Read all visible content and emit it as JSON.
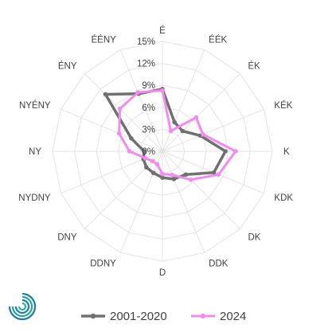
{
  "chart_data": {
    "type": "radar",
    "categories": [
      "É",
      "ÉÉK",
      "ÉK",
      "KÉK",
      "K",
      "KDK",
      "DK",
      "DDK",
      "D",
      "DDNY",
      "DNY",
      "NYDNY",
      "NY",
      "NYÉNY",
      "ÉNY",
      "ÉÉNY"
    ],
    "tick_labels": [
      "0%",
      "3%",
      "6%",
      "9%",
      "12%",
      "15%"
    ],
    "rlim": [
      0,
      15
    ],
    "grid": true,
    "legend_position": "bottom",
    "series": [
      {
        "name": "2001-2020",
        "color": "#707070",
        "values": [
          8.5,
          4.3,
          3.9,
          5.6,
          8.6,
          7.6,
          4.5,
          4.1,
          3.6,
          3.2,
          3.1,
          2.8,
          2.5,
          4.6,
          11.0,
          8.5
        ]
      },
      {
        "name": "2024",
        "color": "#F28BEE",
        "values": [
          8.3,
          3.0,
          6.5,
          6.0,
          10.0,
          8.3,
          5.5,
          3.5,
          3.1,
          1.9,
          1.9,
          2.5,
          4.5,
          6.4,
          8.2,
          8.7
        ]
      }
    ]
  },
  "logo": {
    "icon": "swirl-logo-icon",
    "colors": [
      "#1D7EA3",
      "#21A99A"
    ]
  }
}
